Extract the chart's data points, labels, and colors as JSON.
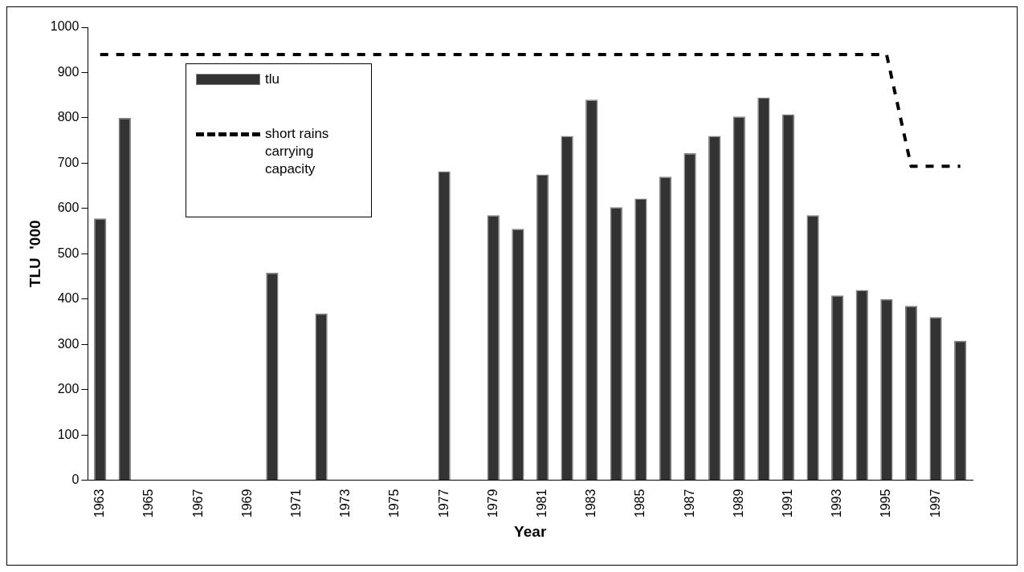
{
  "chart_data": {
    "type": "bar",
    "xlabel": "Year",
    "ylabel": "TLU  '000",
    "categories": [
      "1963",
      null,
      "1965",
      null,
      "1967",
      null,
      "1969",
      null,
      "1971",
      null,
      "1973",
      null,
      "1975",
      null,
      "1977",
      null,
      "1979",
      null,
      "1981",
      null,
      "1983",
      null,
      "1985",
      null,
      "1987",
      null,
      "1989",
      null,
      "1991",
      null,
      "1993",
      null,
      "1995",
      null,
      "1997",
      null
    ],
    "series": [
      {
        "name": "tlu",
        "color": "#333333",
        "values": [
          578,
          800,
          null,
          null,
          null,
          null,
          null,
          458,
          null,
          368,
          null,
          null,
          null,
          null,
          682,
          null,
          585,
          555,
          675,
          760,
          840,
          603,
          622,
          670,
          722,
          760,
          803,
          845,
          808,
          585,
          408,
          420,
          400,
          385,
          360,
          308
        ]
      },
      {
        "name": "short rains carrying capacity",
        "type": "line",
        "color": "#000000",
        "line_style": "dashed",
        "marker": "none",
        "values": [
          940,
          940,
          940,
          940,
          940,
          940,
          940,
          940,
          940,
          940,
          940,
          940,
          940,
          940,
          940,
          940,
          940,
          940,
          940,
          940,
          940,
          940,
          940,
          940,
          940,
          940,
          940,
          940,
          940,
          940,
          940,
          940,
          940,
          693,
          693,
          693
        ]
      }
    ],
    "ylim": [
      0,
      1000
    ],
    "yticks": [
      0,
      100,
      200,
      300,
      400,
      500,
      600,
      700,
      800,
      900,
      1000
    ],
    "grid": false,
    "legend": "top left"
  }
}
